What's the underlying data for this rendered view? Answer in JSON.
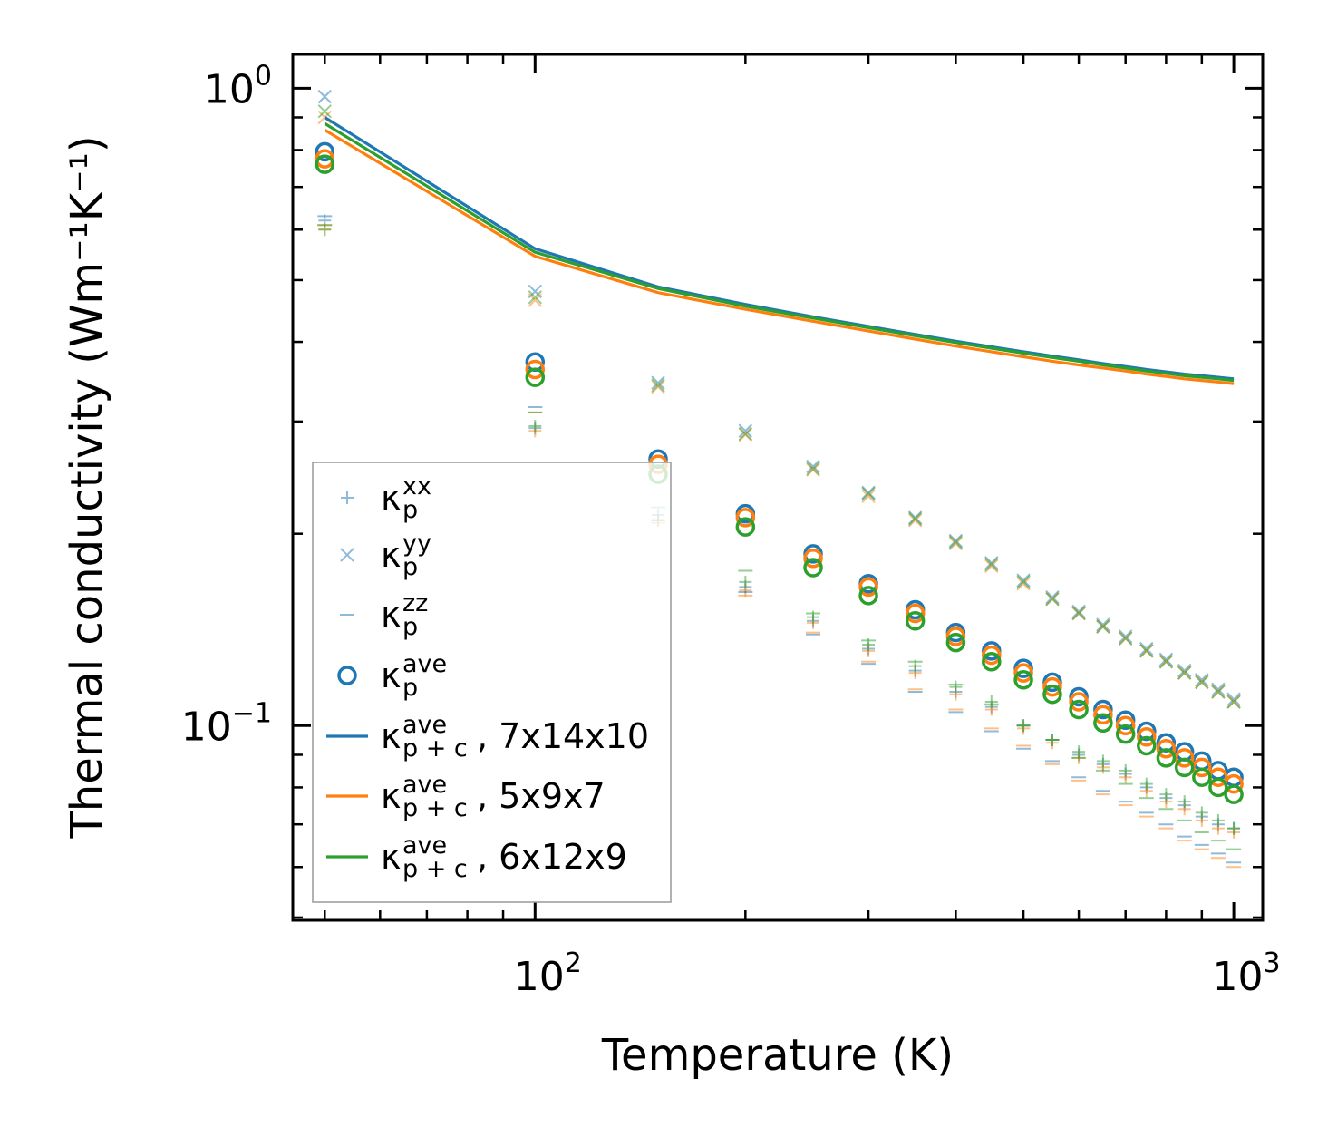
{
  "chart_data": {
    "type": "scatter",
    "title": "",
    "xlabel": "Temperature (K)",
    "ylabel": "Thermal conductivity (Wm⁻¹K⁻¹)",
    "xscale": "log",
    "yscale": "log",
    "xlim": [
      45,
      1100
    ],
    "ylim": [
      0.0495,
      1.13
    ],
    "x_tick_labels": [
      {
        "base": "10",
        "exp": "2"
      },
      {
        "base": "10",
        "exp": "3"
      }
    ],
    "y_tick_labels": [
      {
        "base": "10",
        "exp": "−1"
      },
      {
        "base": "10",
        "exp": "0"
      }
    ],
    "legend_location": "lower-left",
    "x": [
      50,
      100,
      150,
      200,
      250,
      300,
      350,
      400,
      450,
      500,
      550,
      600,
      650,
      700,
      750,
      800,
      850,
      900,
      950,
      1000
    ],
    "colors": {
      "blue": "#1f77b4",
      "orange": "#ff7f0e",
      "green": "#2ca02c"
    },
    "series": [
      {
        "name": "κp^xx",
        "kind": "plus",
        "legend": {
          "base": "κ",
          "sub": "p",
          "sup": "xx",
          "rest": ""
        },
        "groups": [
          {
            "color": "blue",
            "values": [
              0.62,
              0.293,
              0.214,
              0.165,
              0.146,
              0.132,
              0.122,
              0.113,
              0.107,
              0.1,
              0.095,
              0.09,
              0.087,
              0.084,
              0.08,
              0.077,
              0.075,
              0.072,
              0.07,
              0.069
            ]
          },
          {
            "color": "orange",
            "values": [
              0.6,
              0.29,
              0.21,
              0.163,
              0.145,
              0.131,
              0.121,
              0.112,
              0.106,
              0.099,
              0.094,
              0.089,
              0.086,
              0.083,
              0.079,
              0.076,
              0.074,
              0.071,
              0.069,
              0.068
            ]
          },
          {
            "color": "green",
            "values": [
              0.6,
              0.295,
              0.21,
              0.168,
              0.148,
              0.134,
              0.124,
              0.115,
              0.109,
              0.1,
              0.095,
              0.091,
              0.088,
              0.085,
              0.081,
              0.078,
              0.076,
              0.073,
              0.071,
              0.069
            ]
          }
        ]
      },
      {
        "name": "κp^yy",
        "kind": "x",
        "legend": {
          "base": "κ",
          "sub": "p",
          "sup": "yy",
          "rest": ""
        },
        "groups": [
          {
            "color": "blue",
            "values": [
              0.97,
              0.48,
              0.345,
              0.29,
              0.255,
              0.232,
              0.212,
              0.195,
              0.18,
              0.169,
              0.159,
              0.151,
              0.144,
              0.138,
              0.132,
              0.127,
              0.122,
              0.118,
              0.114,
              0.11
            ]
          },
          {
            "color": "orange",
            "values": [
              0.9,
              0.465,
              0.34,
              0.286,
              0.252,
              0.229,
              0.21,
              0.193,
              0.178,
              0.167,
              0.158,
              0.15,
              0.143,
              0.137,
              0.131,
              0.126,
              0.121,
              0.117,
              0.113,
              0.109
            ]
          },
          {
            "color": "green",
            "values": [
              0.92,
              0.47,
              0.342,
              0.287,
              0.253,
              0.231,
              0.211,
              0.194,
              0.179,
              0.168,
              0.158,
              0.15,
              0.143,
              0.137,
              0.131,
              0.126,
              0.121,
              0.117,
              0.113,
              0.109
            ]
          }
        ]
      },
      {
        "name": "κp^zz",
        "kind": "dash",
        "legend": {
          "base": "κ",
          "sub": "p",
          "sup": "zz",
          "rest": ""
        },
        "groups": [
          {
            "color": "blue",
            "values": [
              0.63,
              0.316,
              0.21,
              0.162,
              0.139,
              0.125,
              0.113,
              0.105,
              0.098,
              0.092,
              0.088,
              0.083,
              0.079,
              0.076,
              0.073,
              0.07,
              0.067,
              0.065,
              0.063,
              0.061
            ]
          },
          {
            "color": "orange",
            "values": [
              0.61,
              0.31,
              0.208,
              0.16,
              0.14,
              0.126,
              0.114,
              0.106,
              0.099,
              0.093,
              0.087,
              0.082,
              0.078,
              0.075,
              0.072,
              0.069,
              0.066,
              0.064,
              0.062,
              0.06
            ]
          },
          {
            "color": "green",
            "values": [
              0.61,
              0.31,
              0.22,
              0.175,
              0.15,
              0.136,
              0.126,
              0.116,
              0.108,
              0.1,
              0.095,
              0.089,
              0.085,
              0.081,
              0.077,
              0.074,
              0.071,
              0.068,
              0.066,
              0.064
            ]
          }
        ]
      },
      {
        "name": "κp^ave",
        "kind": "circle",
        "legend": {
          "base": "κ",
          "sub": "p",
          "sup": "ave",
          "rest": ""
        },
        "groups": [
          {
            "color": "blue",
            "values": [
              0.795,
              0.372,
              0.262,
              0.215,
              0.186,
              0.167,
              0.152,
              0.14,
              0.131,
              0.123,
              0.117,
              0.111,
              0.106,
              0.102,
              0.098,
              0.094,
              0.091,
              0.088,
              0.085,
              0.083
            ]
          },
          {
            "color": "orange",
            "values": [
              0.775,
              0.362,
              0.257,
              0.212,
              0.183,
              0.165,
              0.15,
              0.138,
              0.129,
              0.121,
              0.115,
              0.109,
              0.104,
              0.1,
              0.096,
              0.092,
              0.089,
              0.086,
              0.083,
              0.081
            ]
          },
          {
            "color": "green",
            "values": [
              0.76,
              0.352,
              0.248,
              0.205,
              0.177,
              0.16,
              0.146,
              0.135,
              0.126,
              0.118,
              0.112,
              0.106,
              0.101,
              0.097,
              0.093,
              0.089,
              0.086,
              0.083,
              0.08,
              0.078
            ]
          }
        ]
      },
      {
        "name": "κp+c^ave, 7x14x10",
        "kind": "line",
        "color": "blue",
        "legend": {
          "base": "κ",
          "sub": "p + c",
          "sup": "ave",
          "rest": ", 7x14x10"
        },
        "values": [
          0.9,
          0.56,
          0.488,
          0.458,
          0.438,
          0.423,
          0.411,
          0.401,
          0.393,
          0.386,
          0.38,
          0.375,
          0.37,
          0.366,
          0.362,
          0.359,
          0.356,
          0.354,
          0.352,
          0.35
        ]
      },
      {
        "name": "κp+c^ave, 5x9x7",
        "kind": "line",
        "color": "orange",
        "legend": {
          "base": "κ",
          "sub": "p + c",
          "sup": "ave",
          "rest": ", 5x9x7"
        },
        "values": [
          0.86,
          0.545,
          0.478,
          0.45,
          0.431,
          0.416,
          0.404,
          0.394,
          0.386,
          0.379,
          0.373,
          0.368,
          0.364,
          0.36,
          0.356,
          0.353,
          0.35,
          0.348,
          0.346,
          0.344
        ]
      },
      {
        "name": "κp+c^ave, 6x12x9",
        "kind": "line",
        "color": "green",
        "legend": {
          "base": "κ",
          "sub": "p + c",
          "sup": "ave",
          "rest": ", 6x12x9"
        },
        "values": [
          0.88,
          0.553,
          0.485,
          0.455,
          0.436,
          0.421,
          0.409,
          0.399,
          0.391,
          0.384,
          0.378,
          0.373,
          0.368,
          0.364,
          0.36,
          0.357,
          0.354,
          0.352,
          0.35,
          0.348
        ]
      }
    ]
  }
}
